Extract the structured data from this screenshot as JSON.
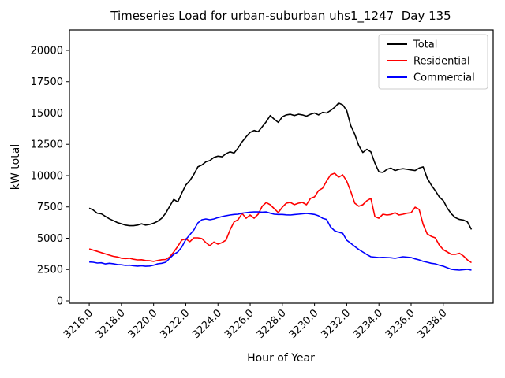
{
  "chart_data": {
    "type": "line",
    "title": "Timeseries Load for urban-suburban uhs1_1247  Day 135",
    "xlabel": "Hour of Year",
    "ylabel": "kW total",
    "grid": false,
    "legend_position": "upper right",
    "xlim": [
      3214.77,
      3241.1
    ],
    "ylim": [
      -189,
      21634
    ],
    "xtick_values": [
      3216,
      3218,
      3220,
      3222,
      3224,
      3226,
      3228,
      3230,
      3232,
      3234,
      3236,
      3238
    ],
    "xtick_labels": [
      "3216.0",
      "3218.0",
      "3220.0",
      "3222.0",
      "3224.0",
      "3226.0",
      "3228.0",
      "3230.0",
      "3232.0",
      "3234.0",
      "3236.0",
      "3238.0"
    ],
    "ytick_values": [
      0,
      2500,
      5000,
      7500,
      10000,
      12500,
      15000,
      17500,
      20000
    ],
    "ytick_labels": [
      "0",
      "2500",
      "5000",
      "7500",
      "10000",
      "12500",
      "15000",
      "17500",
      "20000"
    ],
    "x_start": 3216.0,
    "x_step": 0.25,
    "series": [
      {
        "name": "Total",
        "color": "#000000",
        "values": [
          7400,
          7250,
          7000,
          6950,
          6750,
          6550,
          6400,
          6250,
          6150,
          6050,
          6000,
          6000,
          6050,
          6150,
          6050,
          6100,
          6200,
          6350,
          6600,
          7000,
          7550,
          8100,
          7900,
          8600,
          9250,
          9600,
          10100,
          10700,
          10850,
          11100,
          11200,
          11450,
          11550,
          11500,
          11750,
          11900,
          11800,
          12200,
          12700,
          13100,
          13450,
          13600,
          13500,
          13900,
          14300,
          14800,
          14500,
          14250,
          14700,
          14850,
          14900,
          14800,
          14900,
          14850,
          14750,
          14900,
          15000,
          14850,
          15050,
          15000,
          15200,
          15450,
          15800,
          15650,
          15200,
          14000,
          13300,
          12400,
          11850,
          12100,
          11900,
          11000,
          10300,
          10250,
          10500,
          10600,
          10400,
          10500,
          10550,
          10500,
          10450,
          10400,
          10600,
          10700,
          9800,
          9250,
          8800,
          8300,
          8000,
          7400,
          6950,
          6650,
          6500,
          6450,
          6300,
          5700
        ]
      },
      {
        "name": "Residential",
        "color": "#ff0000",
        "values": [
          4150,
          4050,
          3950,
          3850,
          3750,
          3650,
          3550,
          3500,
          3400,
          3380,
          3400,
          3320,
          3270,
          3280,
          3220,
          3200,
          3150,
          3220,
          3280,
          3300,
          3500,
          3900,
          4350,
          4850,
          4950,
          4720,
          5030,
          5030,
          4970,
          4650,
          4400,
          4700,
          4530,
          4650,
          4850,
          5660,
          6300,
          6480,
          6980,
          6600,
          6855,
          6600,
          6920,
          7550,
          7850,
          7670,
          7360,
          7050,
          7480,
          7800,
          7860,
          7680,
          7800,
          7860,
          7670,
          8180,
          8300,
          8800,
          8990,
          9560,
          10060,
          10190,
          9870,
          10060,
          9560,
          8740,
          7800,
          7550,
          7670,
          7990,
          8180,
          6730,
          6600,
          6920,
          6855,
          6900,
          7040,
          6855,
          6920,
          7000,
          7040,
          7480,
          7300,
          6100,
          5350,
          5150,
          5030,
          4450,
          4090,
          3900,
          3710,
          3710,
          3800,
          3585,
          3270,
          3050
        ]
      },
      {
        "name": "Commercial",
        "color": "#0000ff",
        "values": [
          3100,
          3080,
          3020,
          3040,
          2950,
          3000,
          2960,
          2900,
          2880,
          2830,
          2850,
          2800,
          2770,
          2800,
          2760,
          2780,
          2850,
          2956,
          3000,
          3080,
          3400,
          3710,
          3900,
          4300,
          4900,
          5283,
          5660,
          6226,
          6478,
          6541,
          6478,
          6541,
          6650,
          6729,
          6800,
          6855,
          6900,
          6918,
          7000,
          7044,
          7080,
          7107,
          7100,
          7080,
          7100,
          7000,
          6918,
          6900,
          6900,
          6870,
          6855,
          6890,
          6918,
          6950,
          6980,
          6940,
          6900,
          6790,
          6600,
          6500,
          5900,
          5600,
          5470,
          5400,
          4843,
          4600,
          4340,
          4100,
          3900,
          3700,
          3522,
          3490,
          3459,
          3470,
          3459,
          3440,
          3396,
          3460,
          3522,
          3490,
          3459,
          3350,
          3270,
          3150,
          3082,
          3000,
          2956,
          2850,
          2767,
          2640,
          2516,
          2480,
          2453,
          2490,
          2516,
          2450
        ]
      }
    ]
  }
}
